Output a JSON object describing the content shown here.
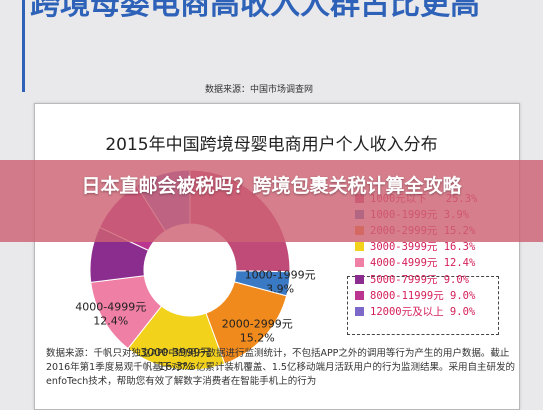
{
  "article": {
    "headline": "跨境母婴电商高收入人群占比更高",
    "source_top": "数据来源：中国市场调查网",
    "banner": "日本直邮会被税吗？跨境包裹关税计算全攻略",
    "footnote": "数据来源：千帆只对独立APP中的用户数据进行监测统计，不包括APP之外的调用等行为产生的用户数据。截止2016年第1季度易观千帆基于对7.5亿累计装机覆盖、1.5亿移动端月活跃用户的行为监测结果。采用自主研发的enfoTech技术，帮助您有效了解数字消费者在智能手机上的行为"
  },
  "chart_data": {
    "type": "pie",
    "style": "donut",
    "title": "2015年中国跨境母婴电商用户个人收入分布",
    "categories": [
      "1000元以下",
      "1000-1999元",
      "2000-2999元",
      "3000-3999元",
      "4000-4999元",
      "5000-7999元",
      "8000-11999元",
      "12000元及以上"
    ],
    "values": [
      25.3,
      3.9,
      15.2,
      16.3,
      12.4,
      9.0,
      9.0,
      9.0
    ],
    "slice_labels": [
      "",
      "1000-1999元\n3.9%",
      "2000-2999元\n15.2%",
      "3000-3999元\n16.3%",
      "4000-4999元\n12.4%",
      "",
      "",
      ""
    ],
    "legend": [
      {
        "label": "1000元以下",
        "value": "25.3%",
        "color": "#c04a78"
      },
      {
        "label": "1000-1999元",
        "value": "3.9%",
        "color": "#3a79c4"
      },
      {
        "label": "2000-2999元",
        "value": "15.2%",
        "color": "#f08a1c"
      },
      {
        "label": "3000-3999元",
        "value": "16.3%",
        "color": "#f2d21b"
      },
      {
        "label": "4000-4999元",
        "value": "12.4%",
        "color": "#f07fa6"
      },
      {
        "label": "5000-7999元",
        "value": "9.0%",
        "color": "#8b2d8e"
      },
      {
        "label": "8000-11999元",
        "value": "9.0%",
        "color": "#b9358f"
      },
      {
        "label": "12000元及以上",
        "value": "9.0%",
        "color": "#7b68c8"
      }
    ],
    "legend_position": "right"
  }
}
